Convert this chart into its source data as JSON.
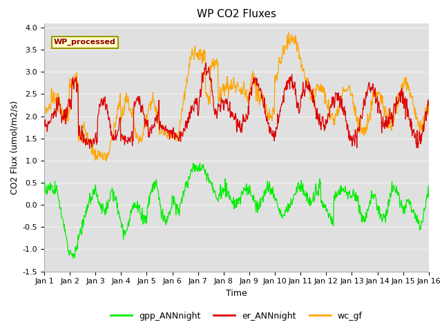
{
  "title": "WP CO2 Fluxes",
  "xlabel": "Time",
  "ylabel": "CO2 Flux (umol/m2/s)",
  "ylim": [
    -1.5,
    4.1
  ],
  "bg_color": "#e0e0e0",
  "grid_color": "#f0f0f0",
  "annotation_text": "WP_processed",
  "annotation_color": "#8B0000",
  "annotation_bg": "#ffffcc",
  "annotation_edge": "#999900",
  "legend_entries": [
    "gpp_ANNnight",
    "er_ANNnight",
    "wc_gf"
  ],
  "line_colors": [
    "#00ee00",
    "#dd0000",
    "#ffa500"
  ],
  "xtick_labels": [
    "Jan 1",
    "Jan 2",
    "Jan 3",
    "Jan 4",
    "Jan 5",
    "Jan 6",
    "Jan 7",
    "Jan 8",
    "Jan 9",
    "Jan 10",
    "Jan 11",
    "Jan 12",
    "Jan 13",
    "Jan 14",
    "Jan 15",
    "Jan 16"
  ],
  "ytick_values": [
    -1.5,
    -1.0,
    -0.5,
    0.0,
    0.5,
    1.0,
    1.5,
    2.0,
    2.5,
    3.0,
    3.5,
    4.0
  ],
  "title_fontsize": 11,
  "label_fontsize": 9,
  "tick_fontsize": 8,
  "n_points": 900
}
